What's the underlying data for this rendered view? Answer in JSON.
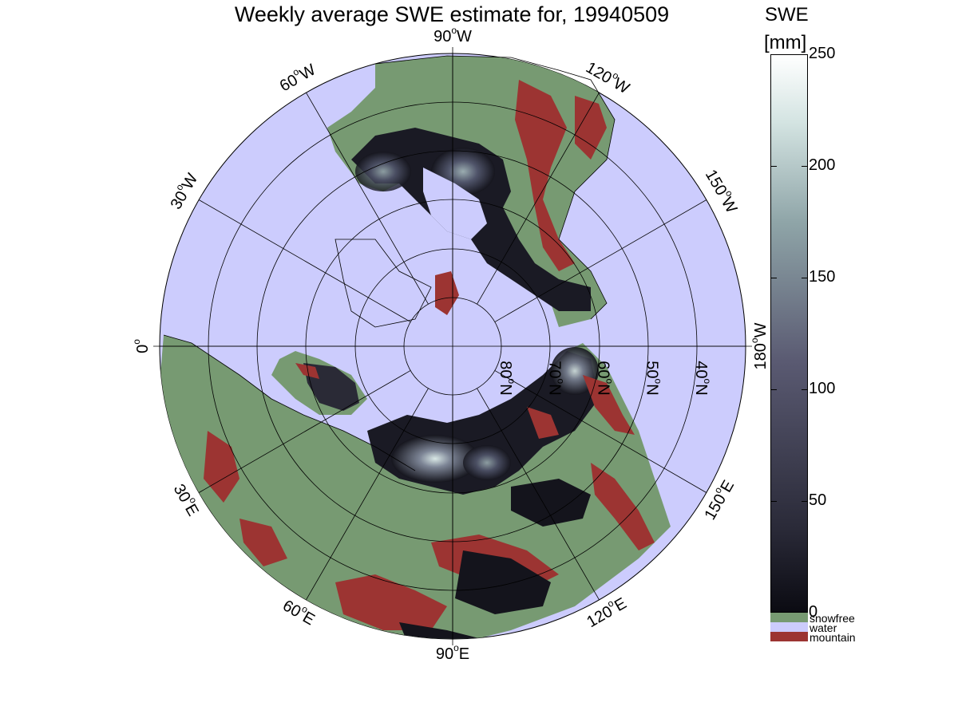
{
  "title": "Weekly average SWE estimate for, 19940509",
  "colorbar": {
    "label_line1": "SWE",
    "label_line2": "[mm]",
    "ticks": [
      {
        "label": "0",
        "value": 0
      },
      {
        "label": "50",
        "value": 50
      },
      {
        "label": "100",
        "value": 100
      },
      {
        "label": "150",
        "value": 150
      },
      {
        "label": "200",
        "value": 200
      },
      {
        "label": "250",
        "value": 250
      }
    ],
    "min": 0,
    "max": 250
  },
  "legend": [
    {
      "label": "snowfree",
      "color": "#779a72"
    },
    {
      "label": "water",
      "color": "#ccccfd"
    },
    {
      "label": "mountain",
      "color": "#9c3432"
    }
  ],
  "longitude_labels": [
    {
      "text": "90",
      "unit": "W",
      "lon": -90
    },
    {
      "text": "120",
      "unit": "W",
      "lon": -120
    },
    {
      "text": "150",
      "unit": "W",
      "lon": -150
    },
    {
      "text": "180",
      "unit": "W",
      "lon": 180
    },
    {
      "text": "150",
      "unit": "E",
      "lon": 150
    },
    {
      "text": "120",
      "unit": "E",
      "lon": 120
    },
    {
      "text": "90",
      "unit": "E",
      "lon": 90
    },
    {
      "text": "60",
      "unit": "E",
      "lon": 60
    },
    {
      "text": "30",
      "unit": "E",
      "lon": 30
    },
    {
      "text": "0",
      "unit": "",
      "lon": 0
    },
    {
      "text": "30",
      "unit": "W",
      "lon": -30
    },
    {
      "text": "60",
      "unit": "W",
      "lon": -60
    }
  ],
  "latitude_labels": [
    {
      "text": "80",
      "unit": "N",
      "lat": 80
    },
    {
      "text": "70",
      "unit": "N",
      "lat": 70
    },
    {
      "text": "60",
      "unit": "N",
      "lat": 60
    },
    {
      "text": "50",
      "unit": "N",
      "lat": 50
    },
    {
      "text": "40",
      "unit": "N",
      "lat": 40
    }
  ],
  "colors": {
    "water": "#ccccfd",
    "snowfree": "#779a72",
    "mountain": "#9c3432",
    "swe_low": "#0b0b12",
    "swe_mid": "#5a5a72",
    "swe_high": "#ffffff"
  }
}
